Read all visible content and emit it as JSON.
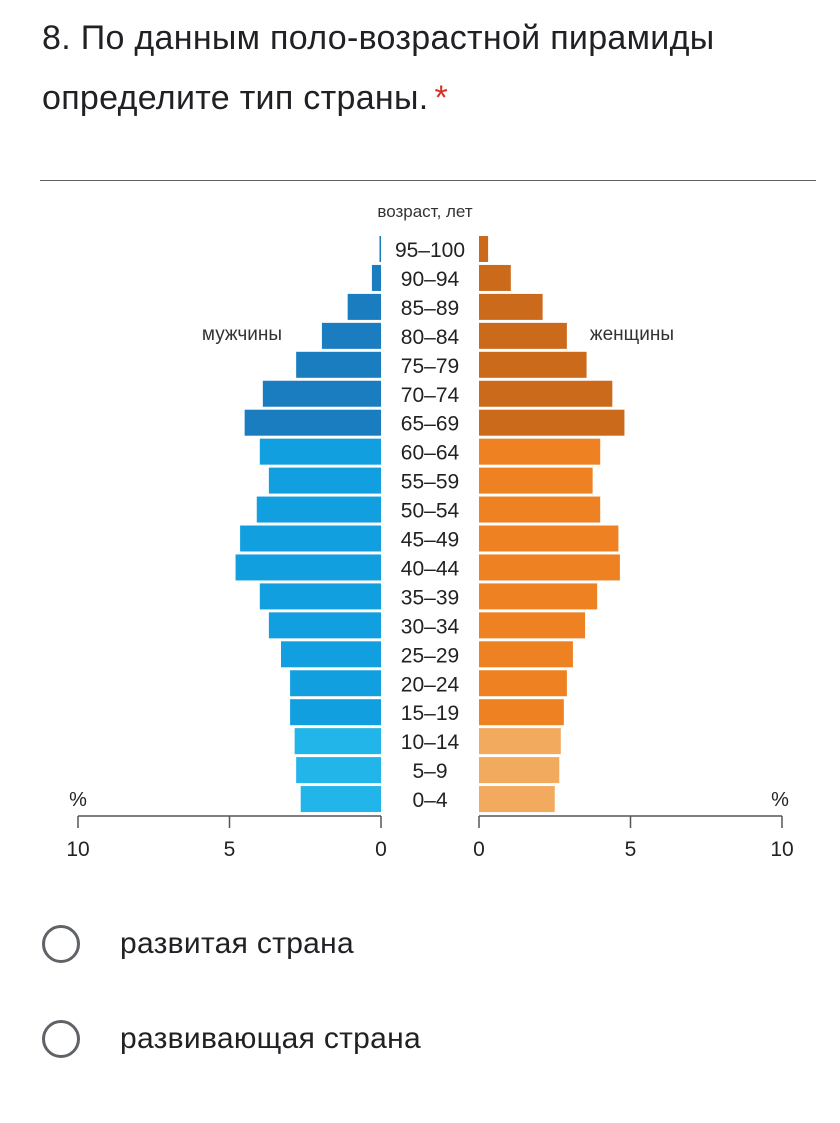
{
  "question": {
    "title": "8. По данным поло-возрастной пирамиды определите тип страны.",
    "required_marker": "*"
  },
  "options": [
    {
      "label": "развитая страна",
      "selected": false
    },
    {
      "label": "развивающая страна",
      "selected": false
    }
  ],
  "chart_data": {
    "type": "bar",
    "subtype": "population-pyramid",
    "title": "возраст, лет",
    "unit": "%",
    "xlim": [
      0,
      10
    ],
    "x_ticks": [
      "10",
      "5",
      "0",
      "0",
      "5",
      "10"
    ],
    "categories": [
      "95–100",
      "90–94",
      "85–89",
      "80–84",
      "75–79",
      "70–74",
      "65–69",
      "60–64",
      "55–59",
      "50–54",
      "45–49",
      "40–44",
      "35–39",
      "30–34",
      "25–29",
      "20–24",
      "15–19",
      "10–14",
      "5–9",
      "0–4"
    ],
    "series": [
      {
        "name": "мужчины",
        "side": "left",
        "values": [
          0.05,
          0.3,
          1.1,
          1.95,
          2.8,
          3.9,
          4.5,
          4.0,
          3.7,
          4.1,
          4.65,
          4.8,
          4.0,
          3.7,
          3.3,
          3.0,
          3.0,
          2.85,
          2.8,
          2.65
        ],
        "colors": {
          "old": "#1a7dc0",
          "working": "#129fe0",
          "young": "#22b5e9"
        }
      },
      {
        "name": "женщины",
        "side": "right",
        "values": [
          0.3,
          1.05,
          2.1,
          2.9,
          3.55,
          4.4,
          4.8,
          4.0,
          3.75,
          4.0,
          4.6,
          4.65,
          3.9,
          3.5,
          3.1,
          2.9,
          2.8,
          2.7,
          2.65,
          2.5
        ],
        "colors": {
          "old": "#cc6a1c",
          "working": "#ee8121",
          "young": "#f2aa5e"
        }
      }
    ],
    "grid": false
  }
}
